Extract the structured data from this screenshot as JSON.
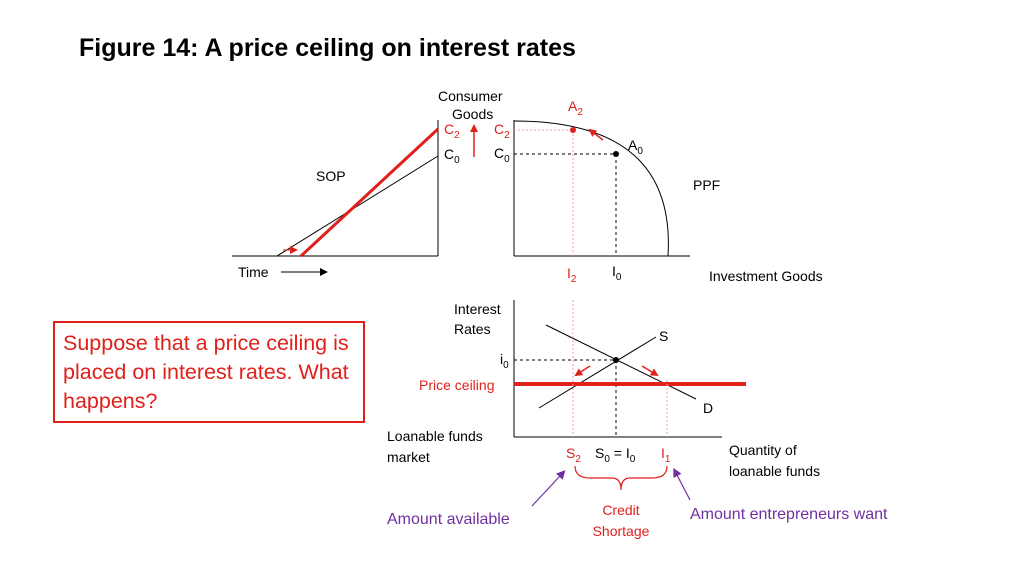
{
  "title": "Figure 14: A price ceiling on interest rates",
  "callout": "Suppose that a price ceiling is placed on interest rates. What happens?",
  "colors": {
    "red": "#e0201b",
    "purple": "#7030a0",
    "black": "#000000"
  },
  "sop": {
    "label": "SOP",
    "time_label": "Time",
    "c2_main": "C",
    "c2_sub": "2",
    "c0_main": "C",
    "c0_sub": "0"
  },
  "ppf": {
    "y_label_1": "Consumer",
    "y_label_2": "Goods",
    "x_label": "Investment Goods",
    "curve_label": "PPF",
    "a2_main": "A",
    "a2_sub": "2",
    "a0_main": "A",
    "a0_sub": "0",
    "c2_main": "C",
    "c2_sub": "2",
    "c0_main": "C",
    "c0_sub": "0",
    "i2_main": "I",
    "i2_sub": "2",
    "i0_main": "I",
    "i0_sub": "0"
  },
  "lf": {
    "y_label_1": "Interest",
    "y_label_2": "Rates",
    "supply_label": "S",
    "demand_label": "D",
    "i0_main": "i",
    "i0_sub": "0",
    "ceiling_label": "Price ceiling",
    "market_label_1": "Loanable funds",
    "market_label_2": "market",
    "x_label_1": "Quantity of",
    "x_label_2": "loanable funds",
    "s2_main": "S",
    "s2_sub": "2",
    "s0_main": "S",
    "s0_sub": "0",
    "s0_eq": " = I",
    "s0_eq_sub": "0",
    "i1_main": "I",
    "i1_sub": "1",
    "shortage_1": "Credit",
    "shortage_2": "Shortage",
    "available": "Amount available",
    "wanted": "Amount entrepreneurs want"
  }
}
